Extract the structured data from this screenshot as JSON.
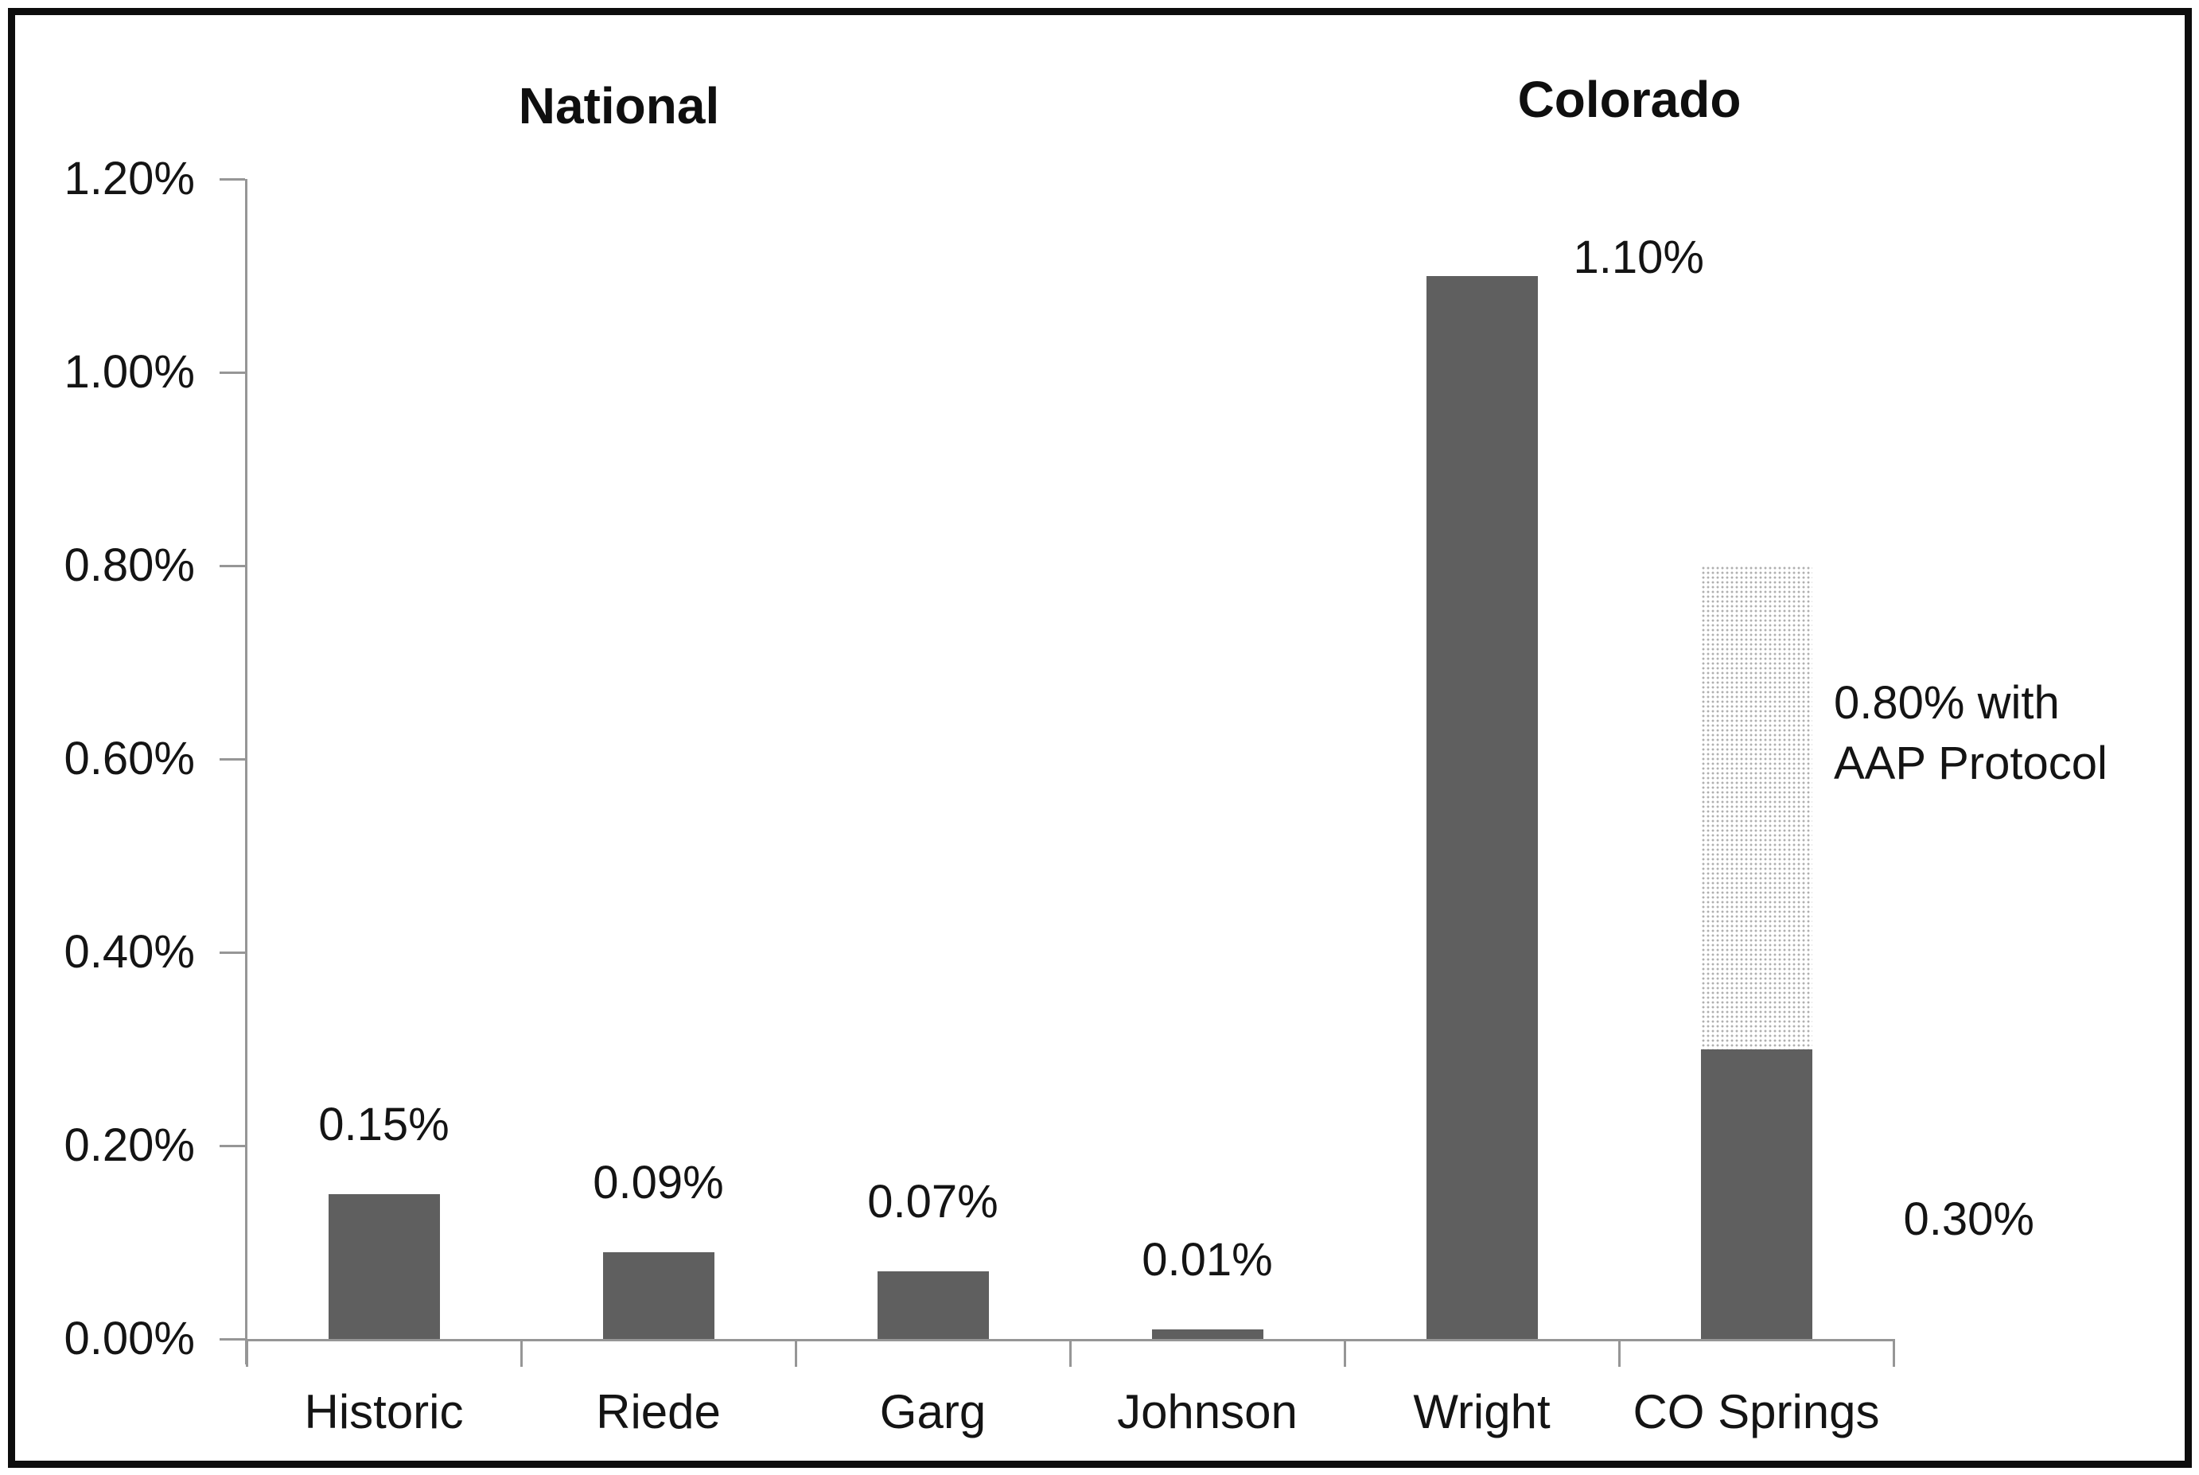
{
  "chart_data": {
    "type": "bar",
    "section_titles": [
      "National",
      "Colorado"
    ],
    "categories": [
      "Historic",
      "Riede",
      "Garg",
      "Johnson",
      "Wright",
      "CO Springs"
    ],
    "series": [
      {
        "name": "reported-rate-solid",
        "values": [
          0.15,
          0.09,
          0.07,
          0.01,
          1.1,
          0.3
        ]
      },
      {
        "name": "aap-protocol-stippled-extension",
        "values": [
          0,
          0,
          0,
          0,
          0,
          0.5
        ]
      }
    ],
    "bar_labels": [
      "0.15%",
      "0.09%",
      "0.07%",
      "0.01%",
      "1.10%",
      "0.30%"
    ],
    "annotation_lines": [
      "0.80% with",
      "AAP Protocol"
    ],
    "y_axis": {
      "min": 0,
      "max": 1.2,
      "step": 0.2,
      "tick_labels": [
        "0.00%",
        "0.20%",
        "0.40%",
        "0.60%",
        "0.80%",
        "1.00%",
        "1.20%"
      ]
    },
    "grid": "off",
    "legend": "none",
    "colors": {
      "bar": "#5f5f5f",
      "axis": "#969696",
      "stipple_dot": "#b0b0b0",
      "text": "#141414",
      "frame": "#0d0d0d"
    }
  }
}
